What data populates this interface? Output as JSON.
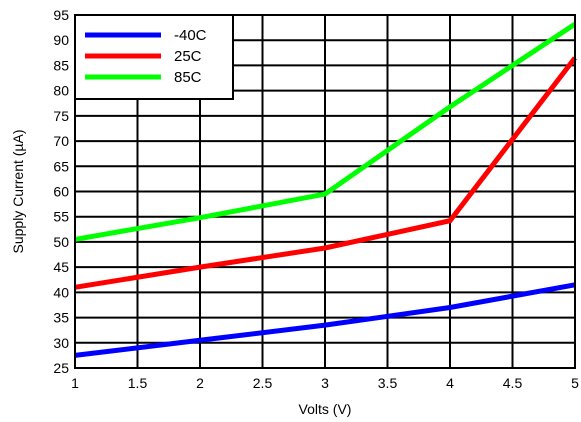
{
  "chart_data": {
    "type": "line",
    "title": "",
    "xlabel": "Volts (V)",
    "ylabel": "Supply Current (µA)",
    "xlim": [
      1,
      5
    ],
    "ylim": [
      25,
      95
    ],
    "xticks": [
      "1",
      "1.5",
      "2",
      "2.5",
      "3",
      "3.5",
      "4",
      "4.5",
      "5"
    ],
    "yticks": [
      "25",
      "30",
      "35",
      "40",
      "45",
      "50",
      "55",
      "60",
      "65",
      "70",
      "75",
      "80",
      "85",
      "90",
      "95"
    ],
    "grid": true,
    "legend_position": "top-left",
    "series": [
      {
        "name": "-40C",
        "color": "#0000ff",
        "x": [
          1,
          2,
          3,
          4,
          5
        ],
        "y": [
          27.5,
          30.5,
          33.5,
          37,
          41.5
        ]
      },
      {
        "name": "25C",
        "color": "#ff0000",
        "x": [
          1,
          2,
          3,
          4,
          5
        ],
        "y": [
          41,
          45,
          48.8,
          54.2,
          86.5
        ]
      },
      {
        "name": "85C",
        "color": "#00ff00",
        "x": [
          1,
          2,
          3,
          4,
          5
        ],
        "y": [
          50.5,
          54.8,
          59.5,
          76.8,
          93.2
        ]
      }
    ]
  }
}
